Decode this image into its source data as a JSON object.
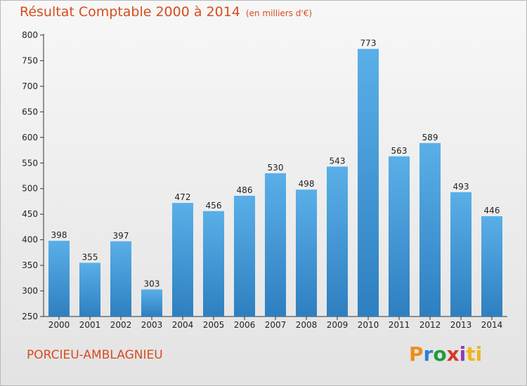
{
  "header": {
    "title": "Résultat Comptable 2000 à 2014",
    "subtitle": "(en milliers d'€)"
  },
  "commune": "PORCIEU-AMBLAGNIEU",
  "logo": {
    "letters": [
      "P",
      "r",
      "o",
      "x",
      "i",
      "ti"
    ]
  },
  "colors": {
    "title": "#d84b1f",
    "bar_light": "#5aafe8",
    "bar_dark": "#2e7fc0"
  },
  "chart_data": {
    "type": "bar",
    "title": "Résultat Comptable 2000 à 2014",
    "categories": [
      "2000",
      "2001",
      "2002",
      "2003",
      "2004",
      "2005",
      "2006",
      "2007",
      "2008",
      "2009",
      "2010",
      "2011",
      "2012",
      "2013",
      "2014"
    ],
    "values": [
      398,
      355,
      397,
      303,
      472,
      456,
      486,
      530,
      498,
      543,
      773,
      563,
      589,
      493,
      446
    ],
    "ylim": [
      250,
      800
    ],
    "yticks": [
      250,
      300,
      350,
      400,
      450,
      500,
      550,
      600,
      650,
      700,
      750,
      800
    ],
    "grid": false
  }
}
